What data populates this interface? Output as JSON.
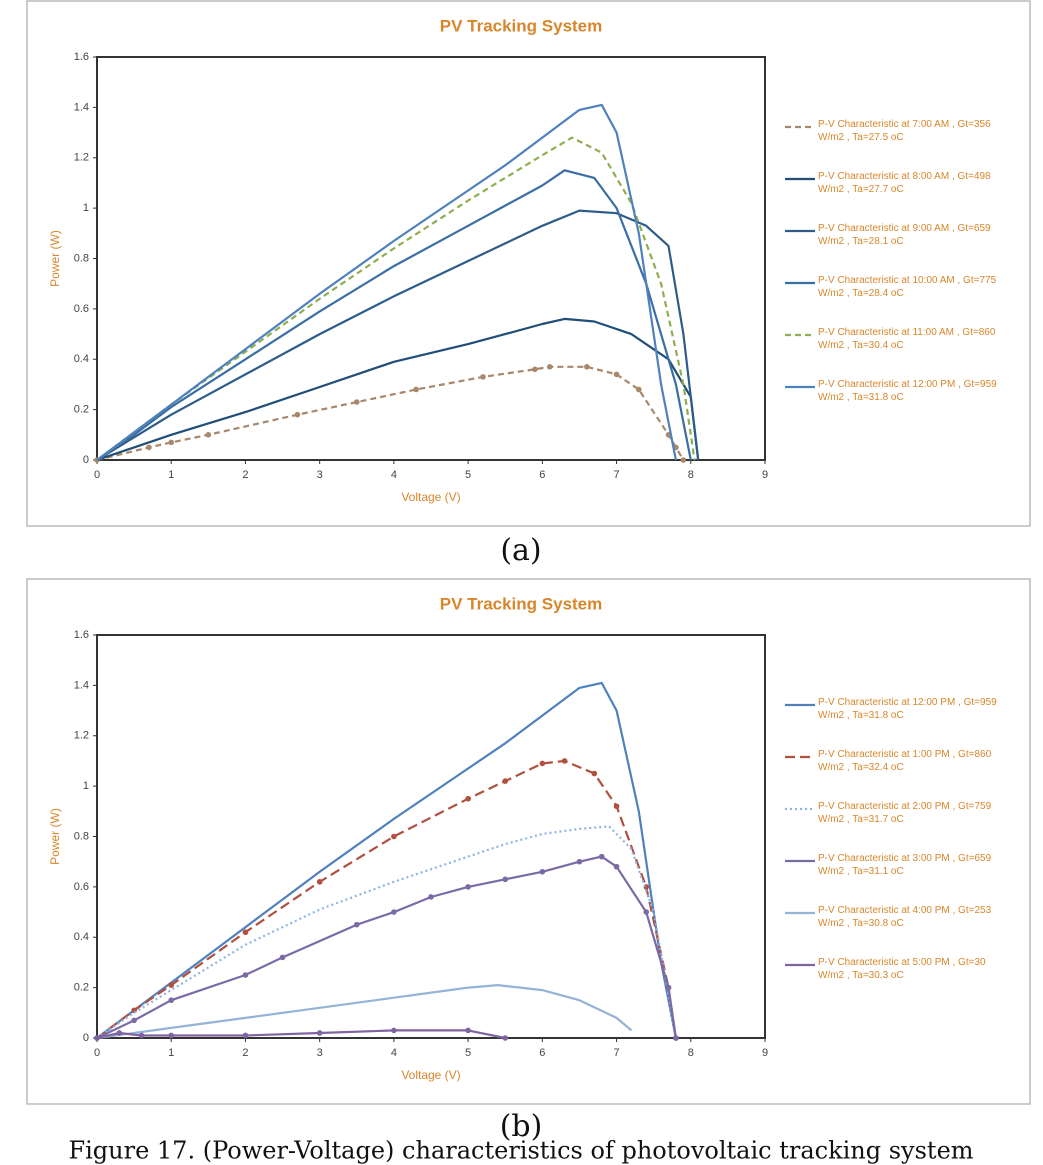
{
  "chart_data": [
    {
      "type": "line",
      "title": "PV Tracking System",
      "x_label": "Voltage (V)",
      "y_label": "Power (W)",
      "xlim": [
        0,
        9
      ],
      "xticks": [
        0,
        1,
        2,
        3,
        4,
        5,
        6,
        7,
        8,
        9
      ],
      "ylim": [
        0,
        1.6
      ],
      "yticks": [
        0,
        0.2,
        0.4,
        0.6,
        0.8,
        1,
        1.2,
        1.4,
        1.6
      ],
      "grid": false,
      "series": [
        {
          "name": "P-V Characteristic at 7:00 AM , Gt=356 W/m2 , Ta=27.5 oC",
          "color": "#a9876a",
          "dash": "6,4",
          "markers": true,
          "x": [
            0,
            0.7,
            1,
            1.5,
            2.7,
            3.5,
            4.3,
            5.2,
            5.9,
            6.1,
            6.6,
            7,
            7.3,
            7.7,
            7.8,
            7.9
          ],
          "values": [
            0,
            0.05,
            0.07,
            0.1,
            0.18,
            0.23,
            0.28,
            0.33,
            0.36,
            0.37,
            0.37,
            0.34,
            0.28,
            0.1,
            0.05,
            0
          ]
        },
        {
          "name": "P-V Characteristic at 8:00 AM , Gt=498 W/m2 , Ta=27.7 oC",
          "color": "#1f4e79",
          "markers": false,
          "x": [
            0,
            0.5,
            1,
            2,
            3,
            4,
            5,
            5.5,
            6,
            6.3,
            6.7,
            7.2,
            7.7,
            8,
            8.1
          ],
          "values": [
            0,
            0.05,
            0.1,
            0.19,
            0.29,
            0.39,
            0.46,
            0.5,
            0.54,
            0.56,
            0.55,
            0.5,
            0.4,
            0.25,
            0
          ]
        },
        {
          "name": "P-V Characteristic at 9:00 AM , Gt=659 W/m2 , Ta=28.1 oC",
          "color": "#2e5c8a",
          "markers": false,
          "x": [
            0,
            0.5,
            1,
            2,
            3,
            4,
            5,
            5.5,
            6,
            6.5,
            7,
            7.4,
            7.7,
            7.9,
            8.1
          ],
          "values": [
            0,
            0.09,
            0.18,
            0.34,
            0.5,
            0.65,
            0.79,
            0.86,
            0.93,
            0.99,
            0.98,
            0.93,
            0.85,
            0.5,
            0
          ]
        },
        {
          "name": "P-V Characteristic at 10:00 AM , Gt=775 W/m2 , Ta=28.4 oC",
          "color": "#3a6ea5",
          "markers": false,
          "x": [
            0,
            0.5,
            1,
            2,
            3,
            4,
            5,
            5.5,
            6,
            6.3,
            6.7,
            7,
            7.4,
            7.8,
            8
          ],
          "values": [
            0,
            0.1,
            0.21,
            0.4,
            0.59,
            0.77,
            0.93,
            1.01,
            1.09,
            1.15,
            1.12,
            1,
            0.7,
            0.3,
            0
          ]
        },
        {
          "name": "P-V Characteristic at 11:00 AM , Gt=860 W/m2 , Ta=30.4 oC",
          "color": "#8fae4f",
          "dash": "6,4",
          "markers": false,
          "x": [
            0,
            0.5,
            1,
            2,
            3,
            4,
            5,
            5.5,
            6,
            6.4,
            6.8,
            7.2,
            7.6,
            7.9,
            8.05
          ],
          "values": [
            0,
            0.11,
            0.22,
            0.43,
            0.64,
            0.84,
            1.03,
            1.12,
            1.21,
            1.28,
            1.22,
            1.02,
            0.7,
            0.3,
            0
          ]
        },
        {
          "name": "P-V Characteristic at 12:00 PM , Gt=959 W/m2 , Ta=31.8 oC",
          "color": "#4f81bd",
          "markers": false,
          "x": [
            0,
            0.5,
            1,
            2,
            3,
            4,
            5,
            5.5,
            6,
            6.5,
            6.8,
            7,
            7.3,
            7.6,
            7.8
          ],
          "values": [
            0,
            0.11,
            0.22,
            0.44,
            0.66,
            0.87,
            1.07,
            1.17,
            1.28,
            1.39,
            1.41,
            1.3,
            0.9,
            0.3,
            0
          ]
        }
      ]
    },
    {
      "type": "line",
      "title": "PV Tracking System",
      "x_label": "Voltage (V)",
      "y_label": "Power (W)",
      "xlim": [
        0,
        9
      ],
      "xticks": [
        0,
        1,
        2,
        3,
        4,
        5,
        6,
        7,
        8,
        9
      ],
      "ylim": [
        0,
        1.6
      ],
      "yticks": [
        0,
        0.2,
        0.4,
        0.6,
        0.8,
        1,
        1.2,
        1.4,
        1.6
      ],
      "grid": false,
      "series": [
        {
          "name": "P-V Characteristic at 12:00 PM , Gt=959 W/m2 , Ta=31.8 oC",
          "color": "#4f81bd",
          "markers": false,
          "x": [
            0,
            0.5,
            1,
            2,
            3,
            4,
            5,
            5.5,
            6,
            6.5,
            6.8,
            7,
            7.3,
            7.6,
            7.8
          ],
          "values": [
            0,
            0.11,
            0.22,
            0.44,
            0.66,
            0.87,
            1.07,
            1.17,
            1.28,
            1.39,
            1.41,
            1.3,
            0.9,
            0.3,
            0
          ]
        },
        {
          "name": "P-V Characteristic at 1:00 PM , Gt=860 W/m2 , Ta=32.4 oC",
          "color": "#b0503f",
          "dash": "10,5",
          "markers": true,
          "x": [
            0,
            0.5,
            1,
            2,
            3,
            4,
            5,
            5.5,
            6,
            6.3,
            6.7,
            7,
            7.4,
            7.7,
            7.8
          ],
          "values": [
            0,
            0.11,
            0.21,
            0.42,
            0.62,
            0.8,
            0.95,
            1.02,
            1.09,
            1.1,
            1.05,
            0.92,
            0.6,
            0.2,
            0
          ]
        },
        {
          "name": "P-V Characteristic at 2:00 PM , Gt=759 W/m2 , Ta=31.7 oC",
          "color": "#8eb4e3",
          "dash": "2,3",
          "markers": false,
          "x": [
            0,
            0.5,
            1,
            2,
            3,
            4,
            5,
            5.5,
            6,
            6.5,
            6.9,
            7.2,
            7.5,
            7.8
          ],
          "values": [
            0,
            0.1,
            0.19,
            0.37,
            0.51,
            0.62,
            0.72,
            0.77,
            0.81,
            0.83,
            0.84,
            0.75,
            0.5,
            0
          ]
        },
        {
          "name": "P-V Characteristic at 3:00 PM , Gt=659 W/m2 , Ta=31.1 oC",
          "color": "#7a6aa6",
          "markers": true,
          "x": [
            0,
            0.5,
            1,
            2,
            2.5,
            3.5,
            4,
            4.5,
            5,
            5.5,
            6,
            6.5,
            6.8,
            7,
            7.4,
            7.7,
            7.8
          ],
          "values": [
            0,
            0.07,
            0.15,
            0.25,
            0.32,
            0.45,
            0.5,
            0.56,
            0.6,
            0.63,
            0.66,
            0.7,
            0.72,
            0.68,
            0.5,
            0.2,
            0
          ]
        },
        {
          "name": "P-V Characteristic at 4:00 PM , Gt=253 W/m2 , Ta=30.8 oC",
          "color": "#95b3d7",
          "markers": false,
          "x": [
            0,
            0.5,
            1,
            2,
            3,
            4,
            5,
            5.4,
            6,
            6.5,
            7,
            7.2
          ],
          "values": [
            0,
            0.02,
            0.04,
            0.08,
            0.12,
            0.16,
            0.2,
            0.21,
            0.19,
            0.15,
            0.08,
            0.03
          ]
        },
        {
          "name": "P-V Characteristic at 5:00 PM , Gt=30 W/m2 , Ta=30.3 oC",
          "color": "#8064a2",
          "markers": true,
          "x": [
            0,
            0.3,
            0.6,
            1,
            2,
            3,
            4,
            5,
            5.5
          ],
          "values": [
            0,
            0.02,
            0.01,
            0.01,
            0.01,
            0.02,
            0.03,
            0.03,
            0
          ]
        }
      ]
    }
  ],
  "panel_labels": [
    "(a)",
    "(b)"
  ],
  "caption": "Figure 17. (Power-Voltage) characteristics of photovoltaic tracking system"
}
